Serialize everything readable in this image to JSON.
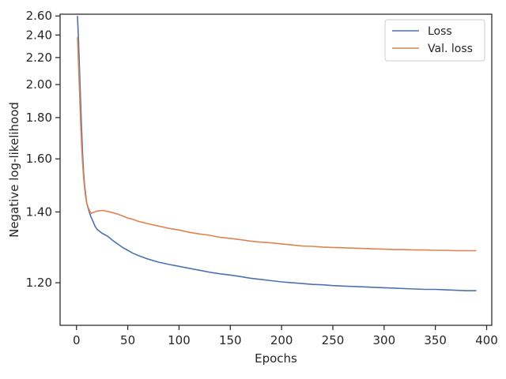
{
  "chart_data": {
    "type": "line",
    "title": "",
    "xlabel": "Epochs",
    "ylabel": "Negative log-likelihood",
    "y_scale": "reciprocal",
    "xlim": [
      -16,
      405
    ],
    "ylim": [
      1.105,
      2.62
    ],
    "x_ticks": [
      0,
      50,
      100,
      150,
      200,
      250,
      300,
      350,
      400
    ],
    "x_tick_labels": [
      "0",
      "50",
      "100",
      "150",
      "200",
      "250",
      "300",
      "350",
      "400"
    ],
    "y_ticks": [
      1.2,
      1.4,
      1.6,
      1.8,
      2.0,
      2.2,
      2.4,
      2.6
    ],
    "y_tick_labels": [
      "1.20",
      "1.40",
      "1.60",
      "1.80",
      "2.00",
      "2.20",
      "2.40",
      "2.60"
    ],
    "grid": false,
    "legend": {
      "position": "top-right",
      "entries": [
        "Loss",
        "Val. loss"
      ]
    },
    "colors": {
      "loss": "#4c72b0",
      "val_loss": "#dd8452",
      "axes": "#262626"
    },
    "series": [
      {
        "name": "Loss",
        "color": "#4c72b0",
        "x": [
          1,
          2,
          3,
          4,
          5,
          6,
          7,
          8,
          9,
          10,
          12,
          14,
          16,
          18,
          20,
          25,
          30,
          35,
          40,
          45,
          50,
          55,
          60,
          70,
          80,
          90,
          100,
          110,
          120,
          130,
          140,
          150,
          160,
          170,
          180,
          190,
          200,
          210,
          220,
          230,
          240,
          250,
          260,
          270,
          280,
          290,
          300,
          310,
          320,
          330,
          340,
          350,
          360,
          370,
          380,
          390
        ],
        "y": [
          2.6,
          2.35,
          2.1,
          1.9,
          1.74,
          1.62,
          1.54,
          1.49,
          1.46,
          1.43,
          1.405,
          1.385,
          1.37,
          1.355,
          1.345,
          1.333,
          1.325,
          1.313,
          1.302,
          1.292,
          1.284,
          1.276,
          1.27,
          1.26,
          1.252,
          1.246,
          1.241,
          1.236,
          1.231,
          1.226,
          1.222,
          1.219,
          1.215,
          1.211,
          1.208,
          1.205,
          1.202,
          1.2,
          1.198,
          1.196,
          1.195,
          1.193,
          1.192,
          1.191,
          1.19,
          1.189,
          1.188,
          1.187,
          1.186,
          1.185,
          1.184,
          1.184,
          1.183,
          1.182,
          1.181,
          1.181
        ]
      },
      {
        "name": "Val. loss",
        "color": "#dd8452",
        "x": [
          1,
          2,
          3,
          4,
          5,
          6,
          7,
          8,
          9,
          10,
          12,
          14,
          16,
          18,
          20,
          25,
          30,
          35,
          40,
          45,
          50,
          55,
          60,
          70,
          80,
          90,
          100,
          110,
          120,
          130,
          140,
          150,
          160,
          170,
          180,
          190,
          200,
          210,
          220,
          230,
          240,
          250,
          260,
          270,
          280,
          290,
          300,
          310,
          320,
          330,
          340,
          350,
          360,
          370,
          380,
          390
        ],
        "y": [
          2.38,
          2.15,
          1.95,
          1.78,
          1.66,
          1.58,
          1.52,
          1.48,
          1.45,
          1.43,
          1.41,
          1.395,
          1.398,
          1.4,
          1.403,
          1.405,
          1.402,
          1.398,
          1.393,
          1.387,
          1.38,
          1.376,
          1.37,
          1.362,
          1.355,
          1.348,
          1.343,
          1.336,
          1.331,
          1.327,
          1.321,
          1.318,
          1.314,
          1.31,
          1.307,
          1.305,
          1.302,
          1.299,
          1.296,
          1.295,
          1.293,
          1.292,
          1.291,
          1.29,
          1.289,
          1.288,
          1.287,
          1.286,
          1.286,
          1.285,
          1.285,
          1.284,
          1.284,
          1.283,
          1.283,
          1.283
        ]
      }
    ]
  }
}
